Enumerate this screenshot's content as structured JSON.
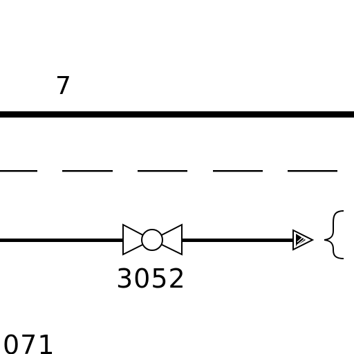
{
  "labels": {
    "line_number": "7",
    "valve_tag": "3052",
    "partial_tag": "071"
  },
  "symbols": {
    "valve": "ball-valve-icon",
    "flow_arrow": "flow-arrow-icon",
    "brace": "curly-brace-icon"
  },
  "colors": {
    "line": "#000000",
    "background": "#ffffff"
  }
}
